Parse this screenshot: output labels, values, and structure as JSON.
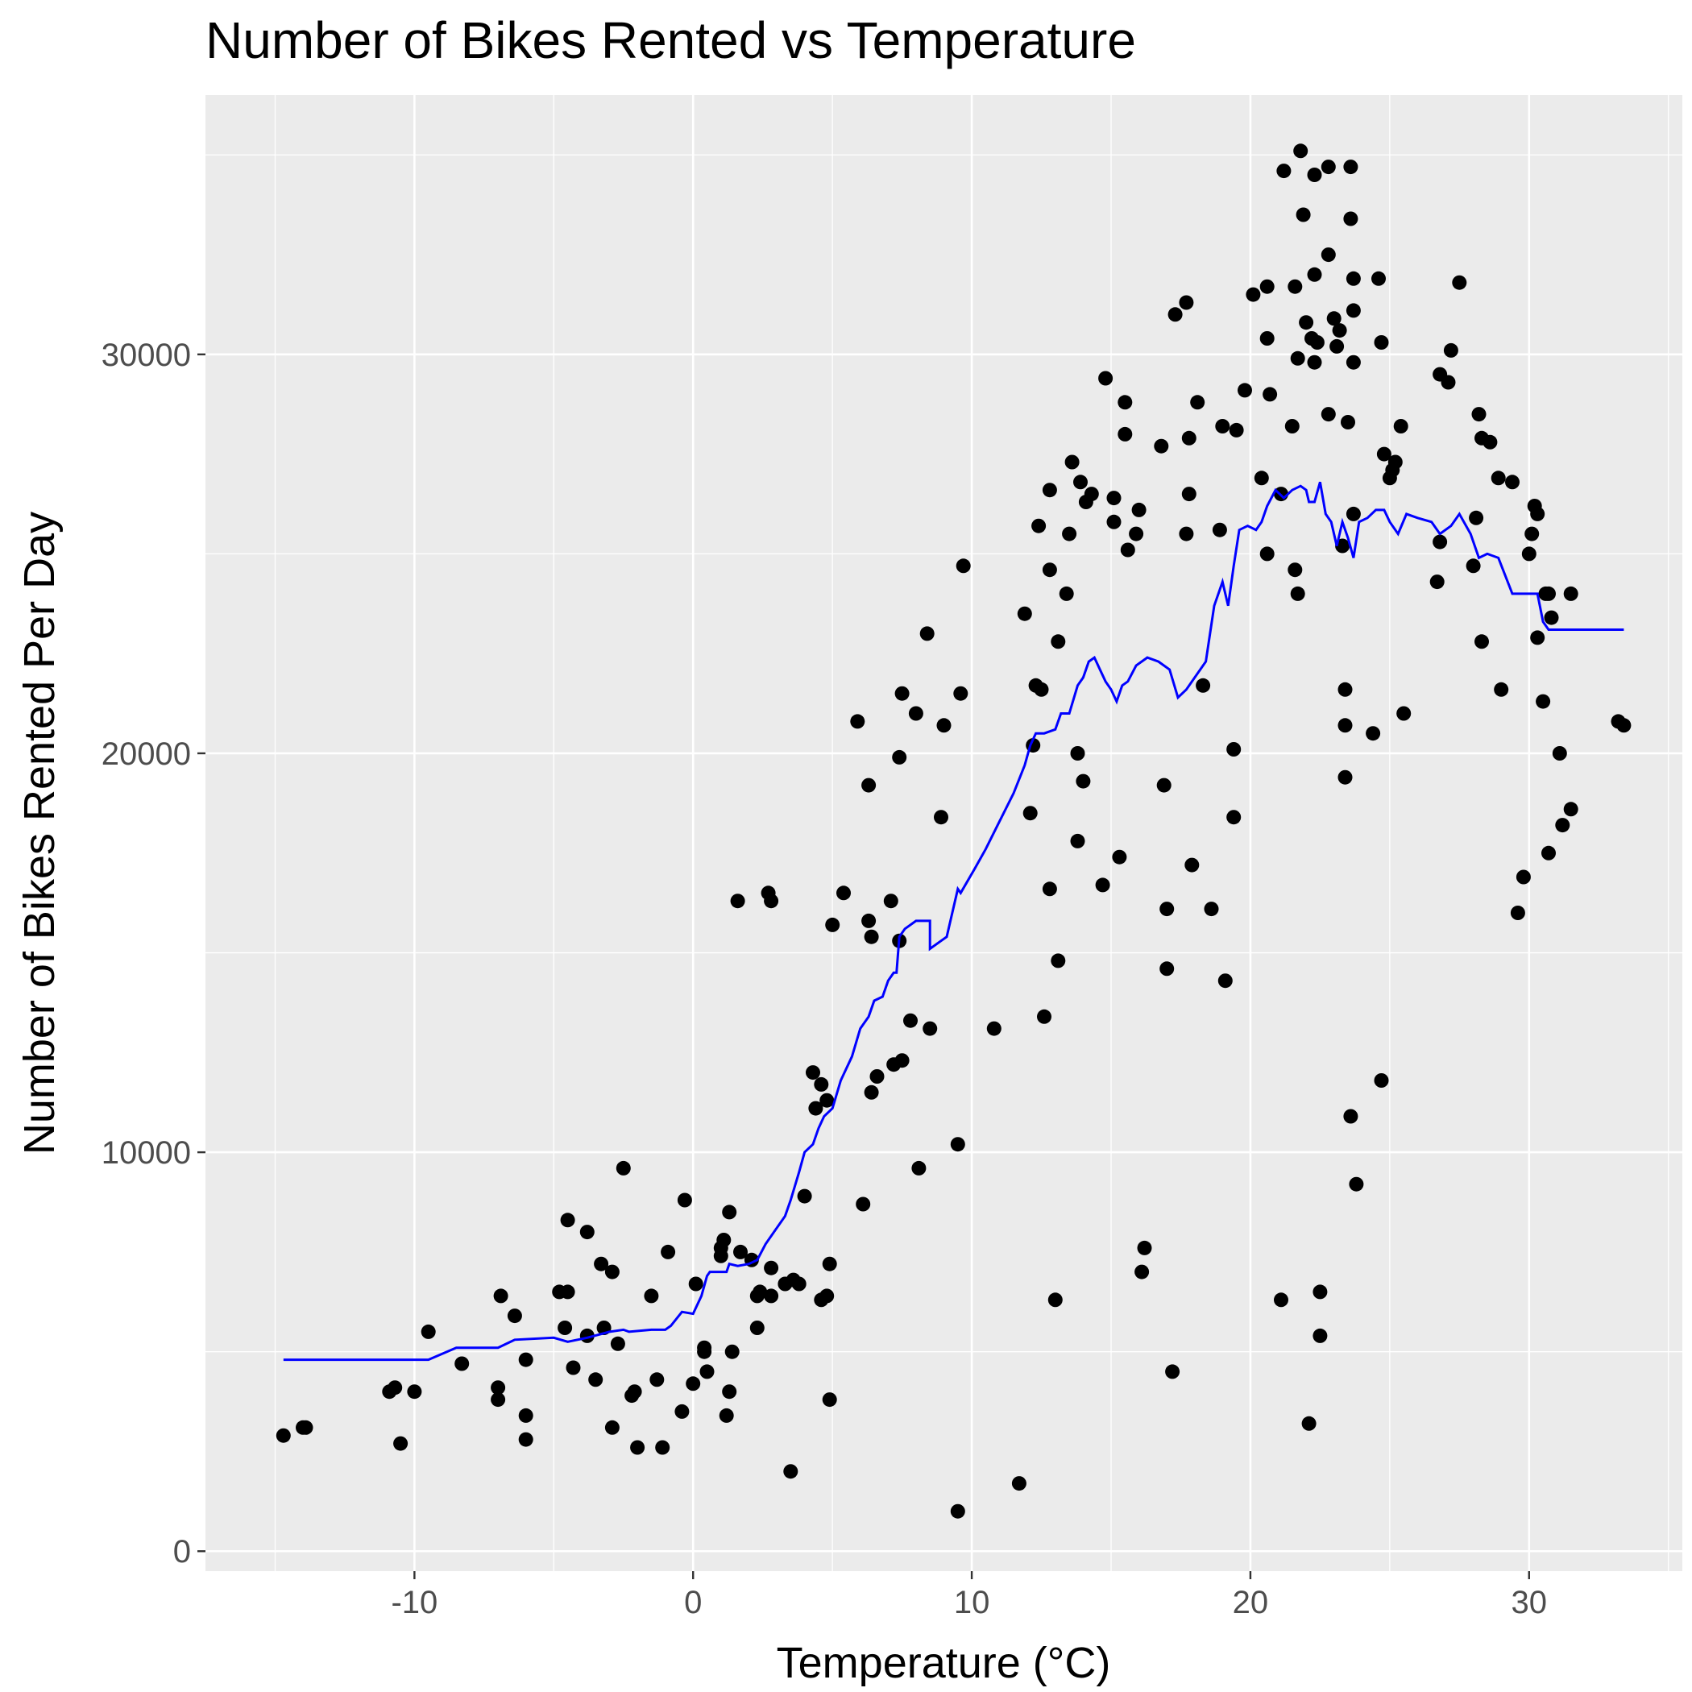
{
  "chart_data": {
    "type": "scatter",
    "title": "Number of Bikes Rented vs Temperature",
    "xlabel": "Temperature (°C)",
    "ylabel": "Number of Bikes Rented Per Day",
    "xlim": [
      -17.5,
      35.5
    ],
    "ylim": [
      -500,
      36500
    ],
    "x_ticks": [
      -10,
      0,
      10,
      20,
      30
    ],
    "x_tick_labels": [
      "-10",
      "0",
      "10",
      "20",
      "30"
    ],
    "y_ticks": [
      0,
      10000,
      20000,
      30000
    ],
    "y_tick_labels": [
      "0",
      "10000",
      "20000",
      "30000"
    ],
    "grid": true,
    "legend": "none",
    "point_color": "#000000",
    "line_color": "#0000ff",
    "panel_background": "#ebebeb",
    "points": [
      [
        -14.7,
        2900
      ],
      [
        -14.0,
        3100
      ],
      [
        -13.9,
        3100
      ],
      [
        -10.9,
        4000
      ],
      [
        -10.7,
        4100
      ],
      [
        -10.5,
        2700
      ],
      [
        -10.0,
        4000
      ],
      [
        -9.5,
        5500
      ],
      [
        -8.3,
        4700
      ],
      [
        -7.0,
        4100
      ],
      [
        -7.0,
        3800
      ],
      [
        -6.9,
        6400
      ],
      [
        -6.4,
        5900
      ],
      [
        -6.0,
        4800
      ],
      [
        -6.0,
        3400
      ],
      [
        -6.0,
        2800
      ],
      [
        -4.8,
        6500
      ],
      [
        -4.6,
        5600
      ],
      [
        -4.5,
        6500
      ],
      [
        -4.5,
        8300
      ],
      [
        -4.3,
        4600
      ],
      [
        -3.8,
        8000
      ],
      [
        -3.8,
        5400
      ],
      [
        -3.5,
        4300
      ],
      [
        -3.3,
        7200
      ],
      [
        -3.2,
        5600
      ],
      [
        -2.9,
        7000
      ],
      [
        -2.9,
        3100
      ],
      [
        -2.7,
        5200
      ],
      [
        -2.5,
        9600
      ],
      [
        -2.2,
        3900
      ],
      [
        -2.1,
        4000
      ],
      [
        -2.0,
        2600
      ],
      [
        -1.5,
        6400
      ],
      [
        -1.3,
        4300
      ],
      [
        -1.1,
        2600
      ],
      [
        -0.9,
        7500
      ],
      [
        -0.4,
        3500
      ],
      [
        -0.3,
        8800
      ],
      [
        0.0,
        4200
      ],
      [
        0.1,
        6700
      ],
      [
        0.4,
        5000
      ],
      [
        0.4,
        5100
      ],
      [
        0.5,
        4500
      ],
      [
        1.0,
        7600
      ],
      [
        1.0,
        7400
      ],
      [
        1.1,
        7800
      ],
      [
        1.2,
        3400
      ],
      [
        1.3,
        4000
      ],
      [
        1.3,
        8500
      ],
      [
        1.4,
        5000
      ],
      [
        1.6,
        16300
      ],
      [
        1.7,
        7500
      ],
      [
        2.1,
        7300
      ],
      [
        2.3,
        5600
      ],
      [
        2.3,
        6400
      ],
      [
        2.4,
        6500
      ],
      [
        2.7,
        16500
      ],
      [
        2.8,
        7100
      ],
      [
        2.8,
        6400
      ],
      [
        2.8,
        16300
      ],
      [
        3.3,
        6700
      ],
      [
        3.5,
        2000
      ],
      [
        3.6,
        6800
      ],
      [
        3.8,
        6700
      ],
      [
        4.0,
        8900
      ],
      [
        4.3,
        12000
      ],
      [
        4.4,
        11100
      ],
      [
        4.6,
        6300
      ],
      [
        4.6,
        11700
      ],
      [
        4.8,
        6400
      ],
      [
        4.8,
        11300
      ],
      [
        4.9,
        7200
      ],
      [
        4.9,
        3800
      ],
      [
        5.0,
        15700
      ],
      [
        5.4,
        16500
      ],
      [
        5.9,
        20800
      ],
      [
        6.1,
        8700
      ],
      [
        6.3,
        19200
      ],
      [
        6.3,
        15800
      ],
      [
        6.4,
        11500
      ],
      [
        6.4,
        15400
      ],
      [
        6.6,
        11900
      ],
      [
        7.1,
        16300
      ],
      [
        7.2,
        12200
      ],
      [
        7.4,
        15300
      ],
      [
        7.4,
        19900
      ],
      [
        7.5,
        21500
      ],
      [
        7.5,
        12300
      ],
      [
        7.8,
        13300
      ],
      [
        8.0,
        21000
      ],
      [
        8.1,
        9600
      ],
      [
        8.4,
        23000
      ],
      [
        8.5,
        13100
      ],
      [
        8.9,
        18400
      ],
      [
        9.0,
        20700
      ],
      [
        9.5,
        1000
      ],
      [
        9.5,
        10200
      ],
      [
        9.6,
        21500
      ],
      [
        9.7,
        24700
      ],
      [
        10.8,
        13100
      ],
      [
        11.7,
        1700
      ],
      [
        11.9,
        23500
      ],
      [
        12.1,
        18500
      ],
      [
        12.2,
        20200
      ],
      [
        12.3,
        21700
      ],
      [
        12.4,
        25700
      ],
      [
        12.5,
        21600
      ],
      [
        12.6,
        13400
      ],
      [
        12.8,
        16600
      ],
      [
        12.8,
        26600
      ],
      [
        12.8,
        24600
      ],
      [
        13.0,
        6300
      ],
      [
        13.1,
        14800
      ],
      [
        13.1,
        22800
      ],
      [
        13.4,
        24000
      ],
      [
        13.5,
        25500
      ],
      [
        13.6,
        27300
      ],
      [
        13.8,
        20000
      ],
      [
        13.8,
        17800
      ],
      [
        13.9,
        26800
      ],
      [
        14.0,
        19300
      ],
      [
        14.1,
        26300
      ],
      [
        14.3,
        26500
      ],
      [
        14.7,
        16700
      ],
      [
        14.8,
        29400
      ],
      [
        15.1,
        26400
      ],
      [
        15.1,
        25800
      ],
      [
        15.3,
        17400
      ],
      [
        15.5,
        28800
      ],
      [
        15.5,
        28000
      ],
      [
        15.6,
        25100
      ],
      [
        15.9,
        25500
      ],
      [
        16.0,
        26100
      ],
      [
        16.1,
        7000
      ],
      [
        16.2,
        7600
      ],
      [
        16.8,
        27700
      ],
      [
        16.9,
        19200
      ],
      [
        17.0,
        16100
      ],
      [
        17.0,
        14600
      ],
      [
        17.2,
        4500
      ],
      [
        17.3,
        31000
      ],
      [
        17.7,
        31300
      ],
      [
        17.7,
        25500
      ],
      [
        17.8,
        27900
      ],
      [
        17.8,
        26500
      ],
      [
        17.9,
        17200
      ],
      [
        18.1,
        28800
      ],
      [
        18.3,
        21700
      ],
      [
        18.6,
        16100
      ],
      [
        18.9,
        25600
      ],
      [
        19.0,
        28200
      ],
      [
        19.1,
        14300
      ],
      [
        19.4,
        18400
      ],
      [
        19.4,
        20100
      ],
      [
        19.5,
        28100
      ],
      [
        19.8,
        29100
      ],
      [
        20.1,
        31500
      ],
      [
        20.4,
        26900
      ],
      [
        20.6,
        31700
      ],
      [
        20.6,
        30400
      ],
      [
        20.6,
        25000
      ],
      [
        20.7,
        29000
      ],
      [
        21.1,
        26500
      ],
      [
        21.1,
        6300
      ],
      [
        21.2,
        34600
      ],
      [
        21.5,
        28200
      ],
      [
        21.6,
        31700
      ],
      [
        21.6,
        24600
      ],
      [
        21.7,
        24000
      ],
      [
        21.7,
        29900
      ],
      [
        21.8,
        35100
      ],
      [
        21.9,
        33500
      ],
      [
        22.0,
        30800
      ],
      [
        22.1,
        3200
      ],
      [
        22.2,
        30400
      ],
      [
        22.3,
        29800
      ],
      [
        22.3,
        32000
      ],
      [
        22.3,
        34500
      ],
      [
        22.4,
        30300
      ],
      [
        22.5,
        6500
      ],
      [
        22.5,
        5400
      ],
      [
        22.8,
        34700
      ],
      [
        22.8,
        28500
      ],
      [
        22.8,
        32500
      ],
      [
        23.0,
        30900
      ],
      [
        23.1,
        30200
      ],
      [
        23.2,
        30600
      ],
      [
        23.3,
        25200
      ],
      [
        23.4,
        21600
      ],
      [
        23.4,
        20700
      ],
      [
        23.4,
        19400
      ],
      [
        23.5,
        28300
      ],
      [
        23.6,
        10900
      ],
      [
        23.6,
        33400
      ],
      [
        23.6,
        34700
      ],
      [
        23.7,
        29800
      ],
      [
        23.7,
        31900
      ],
      [
        23.7,
        31100
      ],
      [
        23.7,
        26000
      ],
      [
        23.8,
        9200
      ],
      [
        24.4,
        20500
      ],
      [
        24.6,
        31900
      ],
      [
        24.7,
        30300
      ],
      [
        24.7,
        11800
      ],
      [
        24.8,
        27500
      ],
      [
        25.0,
        26900
      ],
      [
        25.1,
        27100
      ],
      [
        25.2,
        27300
      ],
      [
        25.4,
        28200
      ],
      [
        25.5,
        21000
      ],
      [
        26.7,
        24300
      ],
      [
        26.8,
        29500
      ],
      [
        26.8,
        25300
      ],
      [
        27.1,
        29300
      ],
      [
        27.2,
        30100
      ],
      [
        27.5,
        31800
      ],
      [
        28.0,
        24700
      ],
      [
        28.1,
        25900
      ],
      [
        28.2,
        28500
      ],
      [
        28.3,
        27900
      ],
      [
        28.3,
        22800
      ],
      [
        28.6,
        27800
      ],
      [
        28.9,
        26900
      ],
      [
        29.0,
        21600
      ],
      [
        29.4,
        26800
      ],
      [
        29.6,
        16000
      ],
      [
        29.8,
        16900
      ],
      [
        30.0,
        25000
      ],
      [
        30.1,
        25500
      ],
      [
        30.2,
        26200
      ],
      [
        30.3,
        26000
      ],
      [
        30.3,
        22900
      ],
      [
        30.5,
        21300
      ],
      [
        30.6,
        24000
      ],
      [
        30.7,
        24000
      ],
      [
        30.7,
        17500
      ],
      [
        30.8,
        23400
      ],
      [
        31.1,
        20000
      ],
      [
        31.2,
        18200
      ],
      [
        31.5,
        18600
      ],
      [
        31.5,
        24000
      ],
      [
        33.2,
        20800
      ],
      [
        33.4,
        20700
      ]
    ],
    "smooth_line": [
      [
        -14.7,
        4800
      ],
      [
        -9.5,
        4800
      ],
      [
        -8.5,
        5100
      ],
      [
        -7.0,
        5100
      ],
      [
        -6.4,
        5300
      ],
      [
        -5.0,
        5350
      ],
      [
        -4.5,
        5250
      ],
      [
        -3.8,
        5350
      ],
      [
        -3.0,
        5500
      ],
      [
        -2.5,
        5550
      ],
      [
        -2.3,
        5500
      ],
      [
        -1.5,
        5550
      ],
      [
        -1.0,
        5550
      ],
      [
        -0.8,
        5650
      ],
      [
        -0.4,
        6000
      ],
      [
        0.0,
        5950
      ],
      [
        0.3,
        6400
      ],
      [
        0.5,
        6900
      ],
      [
        0.6,
        7000
      ],
      [
        1.0,
        7000
      ],
      [
        1.2,
        7000
      ],
      [
        1.3,
        7200
      ],
      [
        1.6,
        7150
      ],
      [
        2.0,
        7200
      ],
      [
        2.3,
        7300
      ],
      [
        2.6,
        7700
      ],
      [
        3.0,
        8100
      ],
      [
        3.3,
        8400
      ],
      [
        3.5,
        8800
      ],
      [
        3.8,
        9500
      ],
      [
        4.0,
        10000
      ],
      [
        4.3,
        10200
      ],
      [
        4.5,
        10600
      ],
      [
        4.7,
        10900
      ],
      [
        5.0,
        11100
      ],
      [
        5.3,
        11800
      ],
      [
        5.7,
        12400
      ],
      [
        6.0,
        13100
      ],
      [
        6.3,
        13400
      ],
      [
        6.5,
        13800
      ],
      [
        6.8,
        13900
      ],
      [
        7.0,
        14300
      ],
      [
        7.2,
        14500
      ],
      [
        7.3,
        14500
      ],
      [
        7.4,
        15400
      ],
      [
        7.6,
        15600
      ],
      [
        8.0,
        15800
      ],
      [
        8.5,
        15800
      ],
      [
        8.5,
        15100
      ],
      [
        8.9,
        15300
      ],
      [
        9.1,
        15400
      ],
      [
        9.5,
        16600
      ],
      [
        9.6,
        16500
      ],
      [
        10.1,
        17100
      ],
      [
        10.5,
        17600
      ],
      [
        11.0,
        18300
      ],
      [
        11.5,
        19000
      ],
      [
        11.9,
        19700
      ],
      [
        12.1,
        20200
      ],
      [
        12.3,
        20500
      ],
      [
        12.6,
        20500
      ],
      [
        13.0,
        20600
      ],
      [
        13.2,
        21000
      ],
      [
        13.5,
        21000
      ],
      [
        13.8,
        21700
      ],
      [
        14.0,
        21900
      ],
      [
        14.2,
        22300
      ],
      [
        14.4,
        22400
      ],
      [
        14.6,
        22100
      ],
      [
        14.8,
        21800
      ],
      [
        15.0,
        21600
      ],
      [
        15.2,
        21300
      ],
      [
        15.4,
        21700
      ],
      [
        15.6,
        21800
      ],
      [
        15.9,
        22200
      ],
      [
        16.3,
        22400
      ],
      [
        16.7,
        22300
      ],
      [
        17.1,
        22100
      ],
      [
        17.4,
        21400
      ],
      [
        17.7,
        21600
      ],
      [
        18.0,
        21900
      ],
      [
        18.4,
        22300
      ],
      [
        18.7,
        23700
      ],
      [
        19.0,
        24300
      ],
      [
        19.2,
        23700
      ],
      [
        19.4,
        24700
      ],
      [
        19.6,
        25600
      ],
      [
        19.9,
        25700
      ],
      [
        20.2,
        25600
      ],
      [
        20.4,
        25800
      ],
      [
        20.6,
        26200
      ],
      [
        20.9,
        26600
      ],
      [
        21.2,
        26400
      ],
      [
        21.5,
        26600
      ],
      [
        21.8,
        26700
      ],
      [
        22.0,
        26600
      ],
      [
        22.1,
        26300
      ],
      [
        22.3,
        26300
      ],
      [
        22.5,
        26800
      ],
      [
        22.7,
        26000
      ],
      [
        22.9,
        25800
      ],
      [
        23.1,
        25200
      ],
      [
        23.3,
        25800
      ],
      [
        23.5,
        25400
      ],
      [
        23.7,
        24900
      ],
      [
        23.9,
        25800
      ],
      [
        24.2,
        25900
      ],
      [
        24.5,
        26100
      ],
      [
        24.8,
        26100
      ],
      [
        25.0,
        25800
      ],
      [
        25.3,
        25500
      ],
      [
        25.6,
        26000
      ],
      [
        26.0,
        25900
      ],
      [
        26.5,
        25800
      ],
      [
        26.8,
        25500
      ],
      [
        27.2,
        25700
      ],
      [
        27.5,
        26000
      ],
      [
        27.9,
        25500
      ],
      [
        28.2,
        24900
      ],
      [
        28.5,
        25000
      ],
      [
        28.9,
        24900
      ],
      [
        29.4,
        24000
      ],
      [
        30.3,
        24000
      ],
      [
        30.5,
        23300
      ],
      [
        30.7,
        23100
      ],
      [
        33.4,
        23100
      ]
    ]
  }
}
